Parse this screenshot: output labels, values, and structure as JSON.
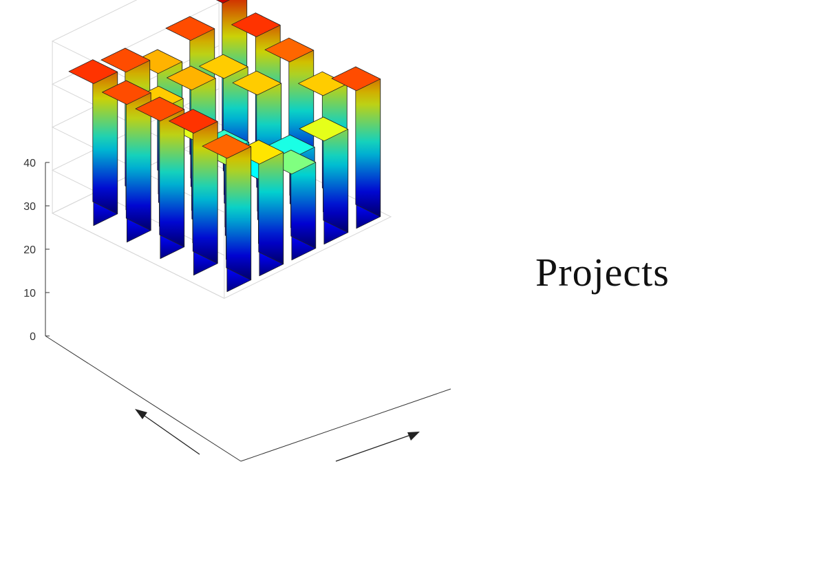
{
  "page": {
    "title": "Projects"
  },
  "chart_data": {
    "type": "bar3d",
    "title": "",
    "xlabel": "",
    "ylabel": "",
    "zlabel": "",
    "zlim": [
      0,
      40
    ],
    "z_ticks": [
      "0",
      "10",
      "20",
      "30",
      "40"
    ],
    "grid": true,
    "colormap": "jet",
    "rows": 5,
    "cols": 5,
    "values": [
      [
        33,
        32,
        28,
        32,
        37
      ],
      [
        32,
        27,
        28,
        27,
        33
      ],
      [
        32,
        24,
        17,
        27,
        31
      ],
      [
        33,
        22,
        15,
        16,
        27
      ],
      [
        31,
        26,
        20,
        24,
        32
      ]
    ]
  }
}
